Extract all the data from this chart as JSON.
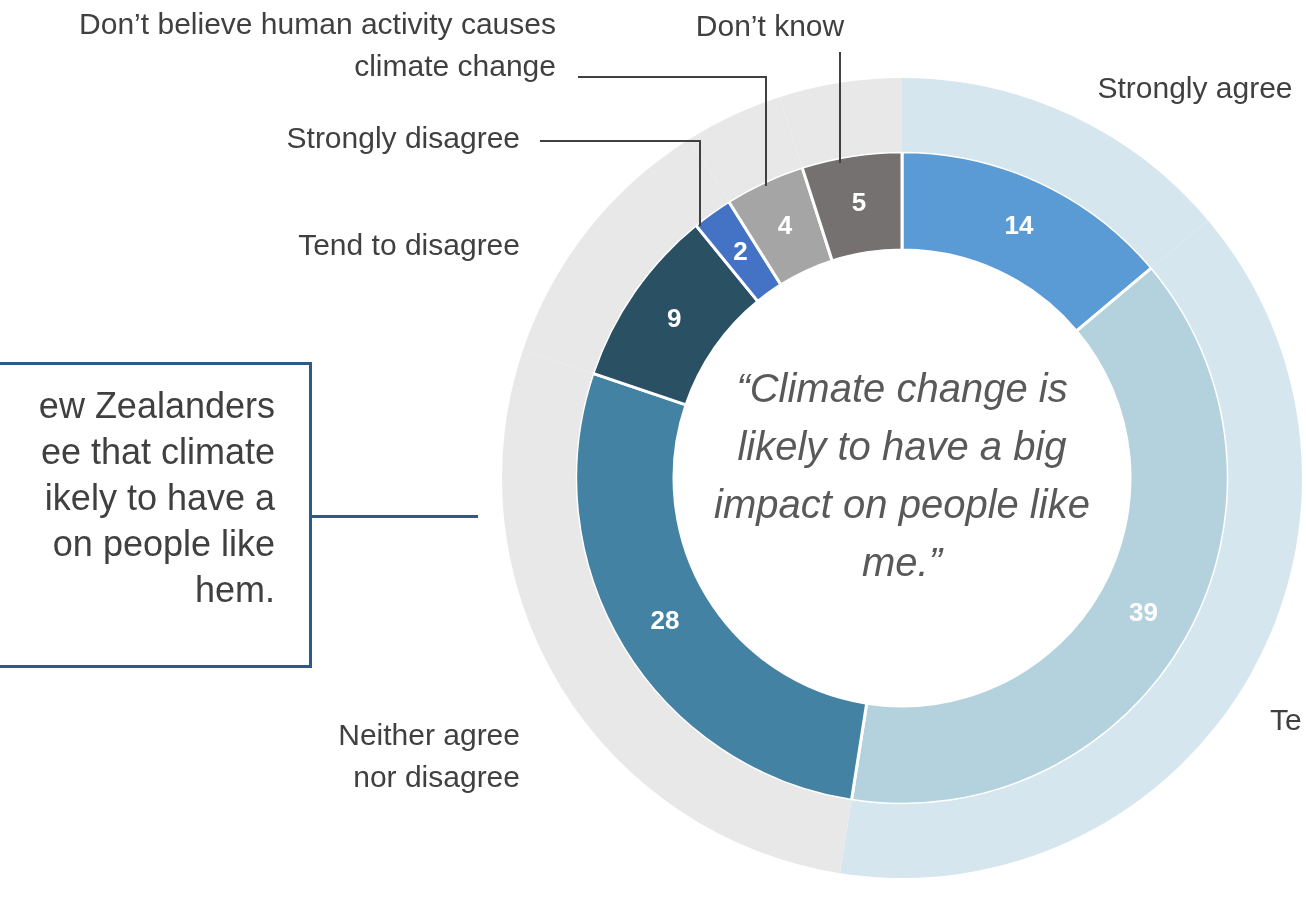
{
  "chart_data": {
    "type": "donut",
    "categories": [
      "Strongly agree",
      "Te",
      "Neither agree nor disagree",
      "Tend to disagree",
      "Strongly disagree",
      "Don’t believe human activity causes climate change",
      "Don’t know"
    ],
    "series": [
      {
        "values": [
          14,
          39,
          28,
          9,
          2,
          4,
          5
        ],
        "colors": [
          "#d6e6ee",
          "#d6e6ee",
          "#e8e8e8",
          "#e8e8e8",
          "#e8e8e8",
          "#e8e8e8",
          "#e8e8e8"
        ]
      },
      {
        "values": [
          14,
          39,
          28,
          9,
          2,
          4,
          5
        ],
        "value_labels": [
          "14",
          "39",
          "28",
          "9",
          "2",
          "4",
          "5"
        ],
        "colors": [
          "#5b9bd5",
          "#b4d2de",
          "#4382a3",
          "#2a5064",
          "#4472c4",
          "#a5a5a5",
          "#767171"
        ]
      }
    ],
    "legend": false,
    "annotations": [
      "“Climate change is likely to have a big impact on people like me.”",
      "ew Zealanders\nee that climate\nikely to have a\n on people like\nhem."
    ]
  }
}
